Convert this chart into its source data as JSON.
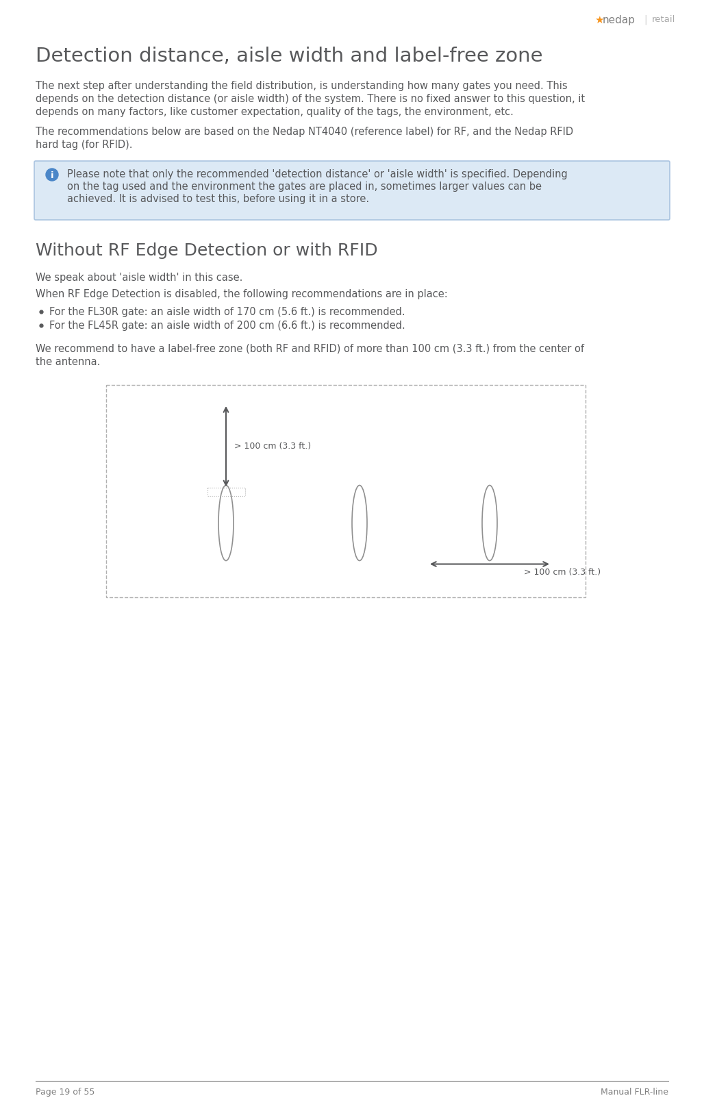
{
  "page_bg": "#ffffff",
  "title": "Detection distance, aisle width and label-free zone",
  "title_color": "#58595b",
  "title_fontsize": 21,
  "body_color": "#58595b",
  "body_fontsize": 10.5,
  "para1_lines": [
    "The next step after understanding the field distribution, is understanding how many gates you need. This",
    "depends on the detection distance (or aisle width) of the system. There is no fixed answer to this question, it",
    "depends on many factors, like customer expectation, quality of the tags, the environment, etc."
  ],
  "para2_lines": [
    "The recommendations below are based on the Nedap NT4040 (reference label) for RF, and the Nedap RFID",
    "hard tag (for RFID)."
  ],
  "info_box_text_lines": [
    "Please note that only the recommended 'detection distance' or 'aisle width' is specified. Depending",
    "on the tag used and the environment the gates are placed in, sometimes larger values can be",
    "achieved. It is advised to test this, before using it in a store."
  ],
  "info_box_bg": "#dce9f5",
  "info_box_border": "#aac4e0",
  "info_icon_color": "#4a86c8",
  "section_title": "Without RF Edge Detection or with RFID",
  "section_title_fontsize": 18,
  "speak_text": "We speak about 'aisle width' in this case.",
  "when_text": "When RF Edge Detection is disabled, the following recommendations are in place:",
  "bullet1": "For the FL30R gate: an aisle width of 170 cm (5.6 ft.) is recommended.",
  "bullet2": "For the FL45R gate: an aisle width of 200 cm (6.6 ft.) is recommended.",
  "label_free_lines": [
    "We recommend to have a label-free zone (both RF and RFID) of more than 100 cm (3.3 ft.) from the center of",
    "the antenna."
  ],
  "diagram_border": "#b0b0b0",
  "diagram_border_style": "dashed",
  "diagram_bg": "#ffffff",
  "arrow_color": "#58595b",
  "ellipse_border_color": "#909090",
  "annotation_color": "#58595b",
  "annotation_fontsize": 9,
  "vert_arrow_label": "> 100 cm (3.3 ft.)",
  "horiz_arrow_label": "> 100 cm (3.3 ft.)",
  "footer_line_color": "#808080",
  "footer_left": "Page 19 of 55",
  "footer_right": "Manual FLR-line",
  "footer_color": "#808080",
  "footer_fontsize": 9,
  "logo_star_color": "#f7941d",
  "logo_nedap_color": "#808080",
  "logo_retail_color": "#aaaaaa"
}
